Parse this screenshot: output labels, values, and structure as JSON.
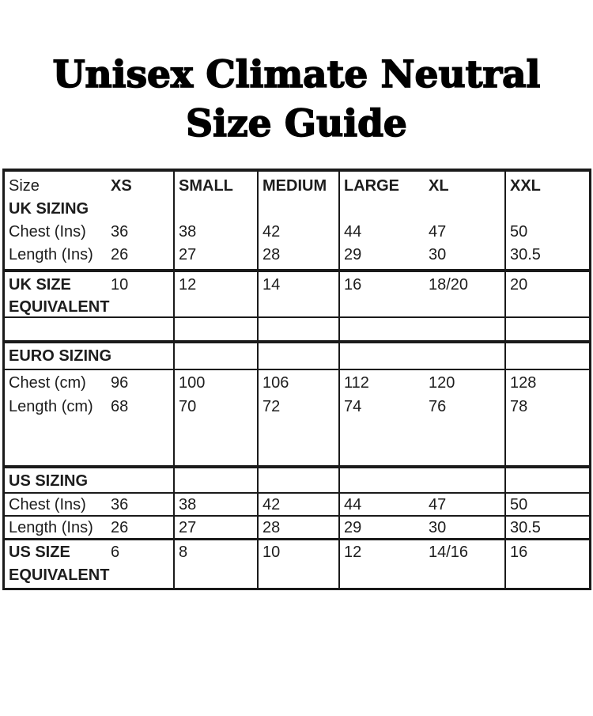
{
  "title": {
    "line1": "Unisex Climate Neutral",
    "line2": "Size Guide"
  },
  "colors": {
    "ink": "#1d1d1d",
    "border": "#1a1a1a",
    "background": "#ffffff"
  },
  "size_table": {
    "header": {
      "size_label": "Size",
      "xs": "XS",
      "small": "SMALL",
      "medium": "MEDIUM",
      "large": "LARGE",
      "xl": "XL",
      "xxl": "XXL"
    },
    "uk": {
      "section_label": "UK SIZING",
      "chest": {
        "label": "Chest (Ins)",
        "xs": "36",
        "small": "38",
        "medium": "42",
        "large": "44",
        "xl": "47",
        "xxl": "50"
      },
      "length": {
        "label": "Length (Ins)",
        "xs": "26",
        "small": "27",
        "medium": "28",
        "large": "29",
        "xl": "30",
        "xxl": "30.5"
      },
      "equivalent": {
        "label_line1": "UK SIZE",
        "label_line2": "EQUIVALENT",
        "xs": "10",
        "small": "12",
        "medium": "14",
        "large": "16",
        "xl": "18/20",
        "xxl": "20"
      }
    },
    "euro": {
      "section_label": "EURO SIZING",
      "chest": {
        "label": "Chest (cm)",
        "xs": "96",
        "small": "100",
        "medium": "106",
        "large": "112",
        "xl": "120",
        "xxl": "128"
      },
      "length": {
        "label": "Length (cm)",
        "xs": "68",
        "small": "70",
        "medium": "72",
        "large": "74",
        "xl": "76",
        "xxl": "78"
      }
    },
    "us": {
      "section_label": "US SIZING",
      "chest": {
        "label": "Chest (Ins)",
        "xs": "36",
        "small": "38",
        "medium": "42",
        "large": "44",
        "xl": "47",
        "xxl": "50"
      },
      "length": {
        "label": "Length (Ins)",
        "xs": "26",
        "small": "27",
        "medium": "28",
        "large": "29",
        "xl": "30",
        "xxl": "30.5"
      },
      "equivalent": {
        "label_line1": "US SIZE",
        "label_line2": "EQUIVALENT",
        "xs": "6",
        "small": "8",
        "medium": "10",
        "large": "12",
        "xl": "14/16",
        "xxl": "16"
      }
    }
  }
}
